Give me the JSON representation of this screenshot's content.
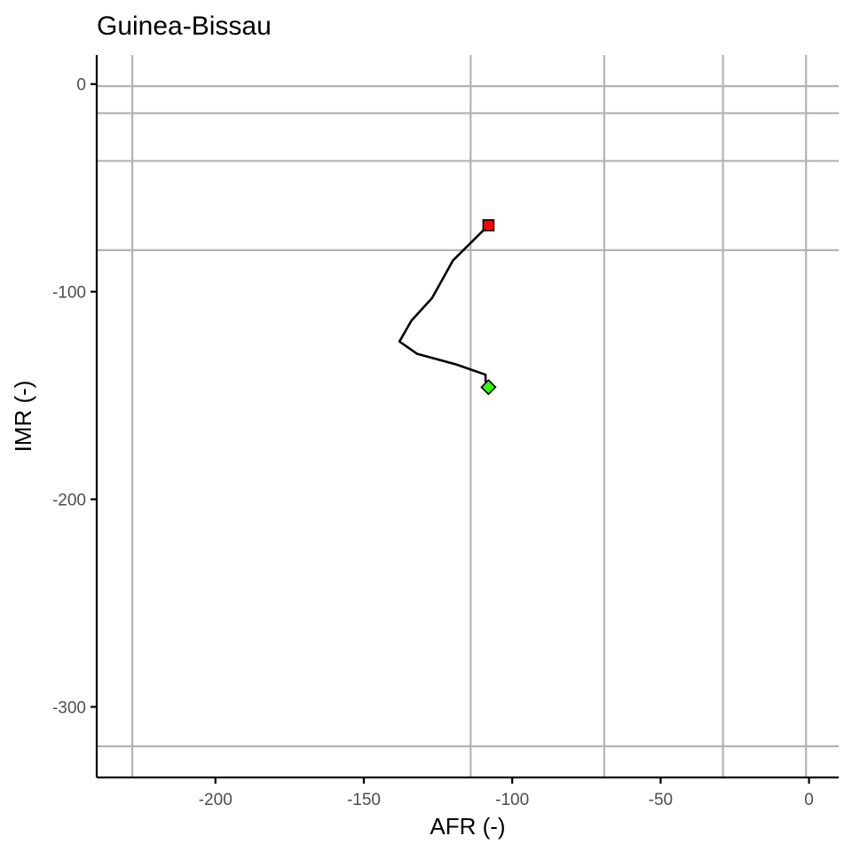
{
  "chart_data": {
    "type": "line",
    "title": "Guinea-Bissau",
    "xlabel": "AFR (-)",
    "ylabel": "IMR (-)",
    "xlim": [
      -240,
      10
    ],
    "ylim": [
      -334,
      14
    ],
    "xticks": [
      -200,
      -150,
      -100,
      -50,
      0
    ],
    "yticks": [
      0,
      -100,
      -200,
      -300
    ],
    "grid": false,
    "reference_lines": {
      "vertical": [
        -228,
        -114,
        -69,
        -29,
        -1
      ],
      "horizontal": [
        -1,
        -14,
        -37,
        -80,
        -319
      ]
    },
    "series": [
      {
        "x": [
          -108,
          -120,
          -127,
          -134,
          -138,
          -132,
          -119,
          -109,
          -109,
          -108
        ],
        "y": [
          -68,
          -85,
          -103,
          -114,
          -124,
          -130,
          -135,
          -140,
          -143,
          -146
        ],
        "line_color": "#000000"
      }
    ],
    "markers": [
      {
        "label": "start",
        "shape": "square",
        "color": "#ff0000",
        "x": -108,
        "y": -68
      },
      {
        "label": "end",
        "shape": "diamond",
        "color": "#33ff00",
        "x": -108,
        "y": -146
      }
    ]
  }
}
